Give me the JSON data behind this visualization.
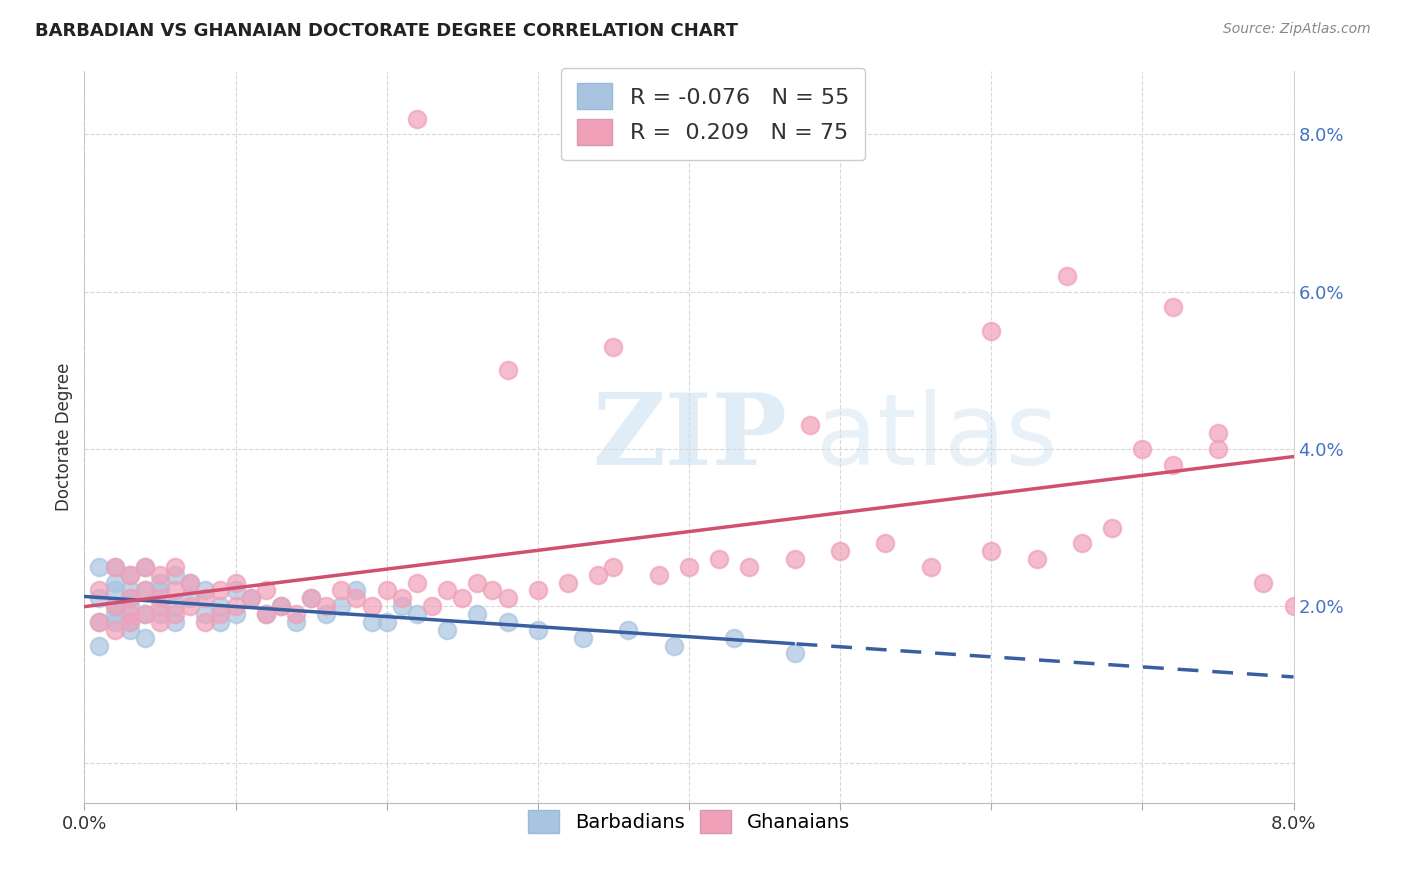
{
  "title": "BARBADIAN VS GHANAIAN DOCTORATE DEGREE CORRELATION CHART",
  "source": "Source: ZipAtlas.com",
  "ylabel": "Doctorate Degree",
  "xlim": [
    0.0,
    0.08
  ],
  "ylim": [
    -0.005,
    0.088
  ],
  "ytick_vals": [
    0.0,
    0.02,
    0.04,
    0.06,
    0.08
  ],
  "ytick_labels": [
    "",
    "2.0%",
    "4.0%",
    "6.0%",
    "8.0%"
  ],
  "xtick_vals": [
    0.0,
    0.01,
    0.02,
    0.03,
    0.04,
    0.05,
    0.06,
    0.07,
    0.08
  ],
  "xtick_labels": [
    "0.0%",
    "",
    "",
    "",
    "",
    "",
    "",
    "",
    "8.0%"
  ],
  "legend_r_blue": "-0.076",
  "legend_n_blue": "55",
  "legend_r_pink": " 0.209",
  "legend_n_pink": "75",
  "blue_scatter_color": "#a8c4e0",
  "pink_scatter_color": "#f0a0b8",
  "blue_line_color": "#3a5fa0",
  "pink_line_color": "#d05070",
  "grid_color": "#d8d8d8",
  "title_color": "#222222",
  "source_color": "#888888",
  "watermark_color": "#cce0f0",
  "blue_x": [
    0.001,
    0.001,
    0.001,
    0.001,
    0.002,
    0.002,
    0.002,
    0.002,
    0.002,
    0.002,
    0.003,
    0.003,
    0.003,
    0.003,
    0.003,
    0.003,
    0.004,
    0.004,
    0.004,
    0.004,
    0.005,
    0.005,
    0.005,
    0.006,
    0.006,
    0.006,
    0.007,
    0.007,
    0.008,
    0.008,
    0.009,
    0.009,
    0.01,
    0.01,
    0.011,
    0.012,
    0.013,
    0.014,
    0.015,
    0.016,
    0.017,
    0.018,
    0.019,
    0.02,
    0.021,
    0.022,
    0.024,
    0.026,
    0.028,
    0.03,
    0.033,
    0.036,
    0.039,
    0.043,
    0.047
  ],
  "blue_y": [
    0.018,
    0.021,
    0.025,
    0.015,
    0.02,
    0.023,
    0.018,
    0.025,
    0.022,
    0.019,
    0.021,
    0.024,
    0.018,
    0.02,
    0.022,
    0.017,
    0.019,
    0.022,
    0.025,
    0.016,
    0.022,
    0.019,
    0.023,
    0.02,
    0.024,
    0.018,
    0.023,
    0.021,
    0.022,
    0.019,
    0.02,
    0.018,
    0.022,
    0.019,
    0.021,
    0.019,
    0.02,
    0.018,
    0.021,
    0.019,
    0.02,
    0.022,
    0.018,
    0.018,
    0.02,
    0.019,
    0.017,
    0.019,
    0.018,
    0.017,
    0.016,
    0.017,
    0.015,
    0.016,
    0.014
  ],
  "pink_x": [
    0.001,
    0.001,
    0.002,
    0.002,
    0.002,
    0.003,
    0.003,
    0.003,
    0.003,
    0.004,
    0.004,
    0.004,
    0.005,
    0.005,
    0.005,
    0.005,
    0.006,
    0.006,
    0.006,
    0.007,
    0.007,
    0.008,
    0.008,
    0.009,
    0.009,
    0.01,
    0.01,
    0.011,
    0.012,
    0.012,
    0.013,
    0.014,
    0.015,
    0.016,
    0.017,
    0.018,
    0.019,
    0.02,
    0.021,
    0.022,
    0.023,
    0.024,
    0.025,
    0.026,
    0.027,
    0.028,
    0.03,
    0.032,
    0.034,
    0.035,
    0.038,
    0.04,
    0.042,
    0.044,
    0.047,
    0.05,
    0.053,
    0.056,
    0.06,
    0.063,
    0.066,
    0.068,
    0.07,
    0.072,
    0.075,
    0.022,
    0.028,
    0.035,
    0.048,
    0.06,
    0.065,
    0.072,
    0.075,
    0.078,
    0.08
  ],
  "pink_y": [
    0.022,
    0.018,
    0.025,
    0.02,
    0.017,
    0.021,
    0.019,
    0.024,
    0.018,
    0.022,
    0.019,
    0.025,
    0.021,
    0.018,
    0.024,
    0.02,
    0.022,
    0.019,
    0.025,
    0.02,
    0.023,
    0.021,
    0.018,
    0.022,
    0.019,
    0.02,
    0.023,
    0.021,
    0.019,
    0.022,
    0.02,
    0.019,
    0.021,
    0.02,
    0.022,
    0.021,
    0.02,
    0.022,
    0.021,
    0.023,
    0.02,
    0.022,
    0.021,
    0.023,
    0.022,
    0.021,
    0.022,
    0.023,
    0.024,
    0.025,
    0.024,
    0.025,
    0.026,
    0.025,
    0.026,
    0.027,
    0.028,
    0.025,
    0.027,
    0.026,
    0.028,
    0.03,
    0.04,
    0.038,
    0.042,
    0.082,
    0.05,
    0.053,
    0.043,
    0.055,
    0.062,
    0.058,
    0.04,
    0.023,
    0.02
  ]
}
